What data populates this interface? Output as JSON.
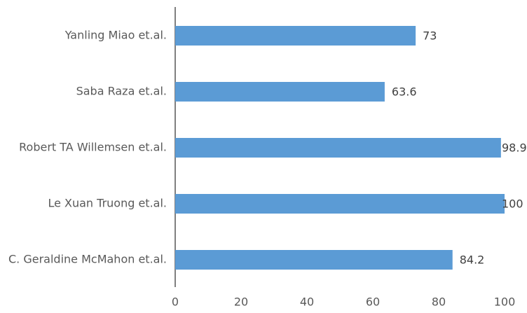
{
  "chart_data": {
    "type": "hbar",
    "categories": [
      "Yanling Miao et.al.",
      "Saba Raza et.al.",
      "Robert TA Willemsen et.al.",
      "Le Xuan Truong et.al.",
      "C. Geraldine McMahon et.al."
    ],
    "values": [
      73,
      63.6,
      98.9,
      100,
      84.2
    ],
    "color": "#5b9bd5",
    "xlim": [
      0,
      100
    ],
    "xticks": [
      0,
      20,
      40,
      60,
      80,
      100
    ],
    "grid": false
  }
}
